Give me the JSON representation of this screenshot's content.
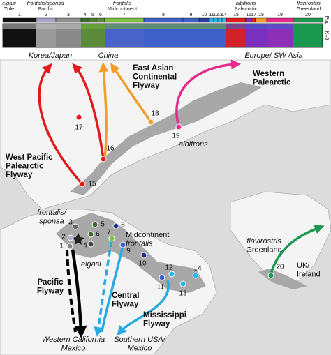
{
  "structure_plot": {
    "groups": [
      {
        "subspecies": "elgasi",
        "population": "Tule"
      },
      {
        "subspecies": "frontalis/sponsa",
        "population": "Pacific"
      },
      {
        "subspecies": "frontalis",
        "population": "Midcontinent"
      },
      {
        "subspecies": "albifrons",
        "population": "Palearctic"
      },
      {
        "subspecies": "flavirostris",
        "population": "Greenland"
      }
    ],
    "populations": [
      "1",
      "2",
      "3",
      "4",
      "5",
      "6",
      "7",
      "8",
      "9",
      "10",
      "11",
      "12",
      "13",
      "14",
      "15",
      "16",
      "17",
      "18",
      "19",
      "20"
    ],
    "row_labels": [
      "Pop",
      "K=5"
    ]
  },
  "map": {
    "labels": [
      {
        "lines": [
          "Korea/Japan"
        ]
      },
      {
        "lines": [
          "China"
        ]
      },
      {
        "lines": [
          "Europe/ SW Asia"
        ]
      },
      {
        "lines": [
          "East Asian",
          "Continental",
          "Flyway"
        ]
      },
      {
        "lines": [
          "Western",
          "Palearctic"
        ]
      },
      {
        "lines": [
          "West Pacific",
          "Palearctic",
          "Flyway"
        ]
      },
      {
        "lines": [
          "albifrons"
        ]
      },
      {
        "lines": [
          "frontalis/",
          "sponsa"
        ]
      },
      {
        "lines": [
          "Midcontinent",
          "frontalis"
        ]
      },
      {
        "lines": [
          "elgasi"
        ]
      },
      {
        "lines": [
          "Pacific",
          "Flyway"
        ]
      },
      {
        "lines": [
          "Central",
          "Flyway"
        ]
      },
      {
        "lines": [
          "Mississippi",
          "Flyway"
        ]
      },
      {
        "lines": [
          "flavirostris",
          "Greenland"
        ]
      },
      {
        "lines": [
          "UK/",
          "Ireland"
        ]
      },
      {
        "lines": [
          "Western California",
          "Mexico"
        ]
      },
      {
        "lines": [
          "Southern USA/",
          "Mexico"
        ]
      }
    ],
    "sites": [
      "1",
      "2",
      "3",
      "4",
      "5",
      "6",
      "7",
      "8",
      "9",
      "10",
      "11",
      "12",
      "13",
      "14",
      "15",
      "16",
      "17",
      "18",
      "19",
      "20"
    ]
  }
}
